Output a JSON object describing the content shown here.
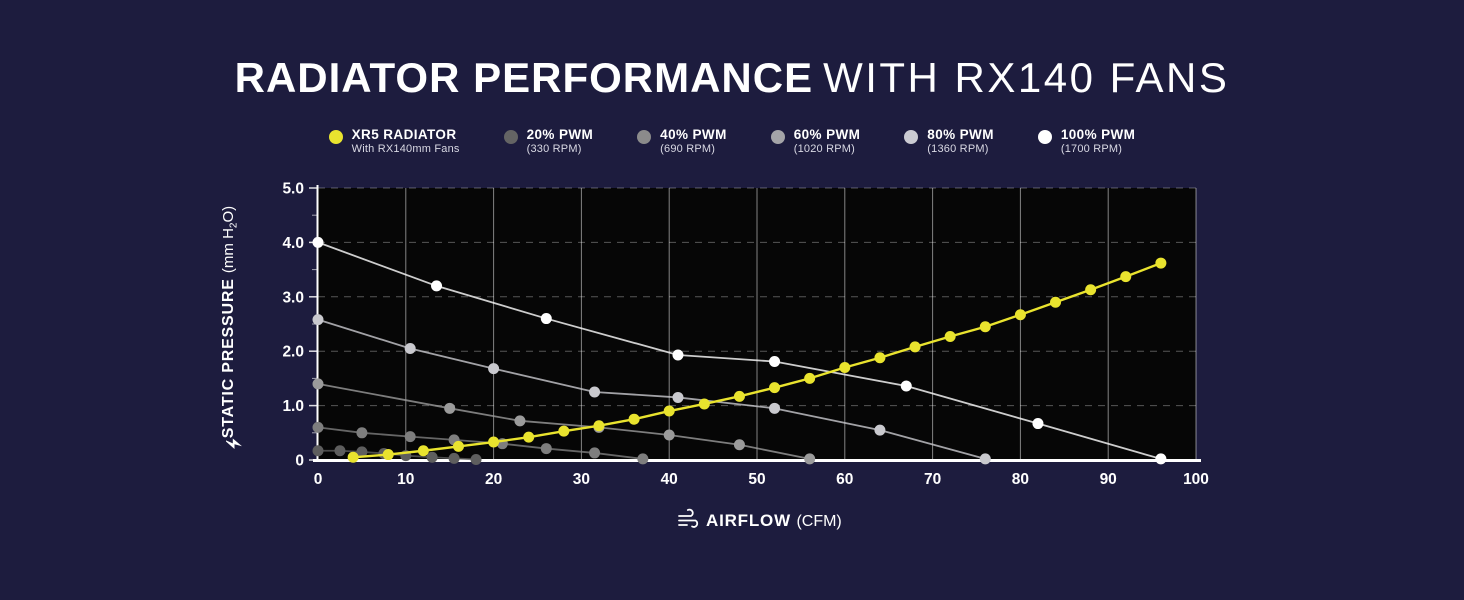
{
  "title": {
    "bold": "RADIATOR PERFORMANCE",
    "light": "WITH RX140 FANS"
  },
  "colors": {
    "background": "#1d1c3e",
    "plot_background": "#060606",
    "accent_yellow": "#e9e32e",
    "axis_white": "#ffffff"
  },
  "legend": [
    {
      "label": "XR5 RADIATOR",
      "sub": "With RX140mm Fans",
      "color": "#e9e42f"
    },
    {
      "label": "20% PWM",
      "sub": "(330 RPM)",
      "color": "#646464"
    },
    {
      "label": "40% PWM",
      "sub": "(690 RPM)",
      "color": "#8b8b8b"
    },
    {
      "label": "60% PWM",
      "sub": "(1020 RPM)",
      "color": "#a4a4a8"
    },
    {
      "label": "80% PWM",
      "sub": "(1360 RPM)",
      "color": "#cbcbd2"
    },
    {
      "label": "100% PWM",
      "sub": "(1700 RPM)",
      "color": "#ffffff"
    }
  ],
  "chart_data": {
    "type": "line",
    "title": "RADIATOR PERFORMANCE WITH RX140 FANS",
    "xlabel": "AIRFLOW (CFM)",
    "ylabel": "STATIC PRESSURE (mm H2O)",
    "xlabel_bold": "AIRFLOW",
    "xlabel_unit": "(CFM)",
    "ylabel_bold": "STATIC PRESSURE",
    "ylabel_unit_pre": "(mm H",
    "ylabel_unit_sub": "2",
    "ylabel_unit_post": "O)",
    "xlim": [
      0,
      100
    ],
    "ylim": [
      0,
      5
    ],
    "xticks": [
      0,
      10,
      20,
      30,
      40,
      50,
      60,
      70,
      80,
      90,
      100
    ],
    "yticks": [
      {
        "v": 0,
        "label": "0"
      },
      {
        "v": 1,
        "label": "1.0"
      },
      {
        "v": 2,
        "label": "2.0"
      },
      {
        "v": 3,
        "label": "3.0"
      },
      {
        "v": 4,
        "label": "4.0"
      },
      {
        "v": 5,
        "label": "5.0"
      }
    ],
    "yminor": [
      0.5,
      1.5,
      2.5,
      3.5,
      4.5
    ],
    "ygrid": [
      1,
      2,
      3,
      4,
      5
    ],
    "grid": "vertical solid, horizontal dashed",
    "legend_position": "top",
    "series": [
      {
        "name": "20% PWM",
        "rpm": "330 RPM",
        "color": "#5e5e5e",
        "points": [
          [
            0,
            0.17
          ],
          [
            2.5,
            0.17
          ],
          [
            5,
            0.15
          ],
          [
            7.5,
            0.12
          ],
          [
            10,
            0.08
          ],
          [
            13,
            0.05
          ],
          [
            15.5,
            0.03
          ],
          [
            18,
            0.01
          ]
        ]
      },
      {
        "name": "40% PWM",
        "rpm": "690 RPM",
        "color": "#7e7e7e",
        "points": [
          [
            0,
            0.6
          ],
          [
            5,
            0.5
          ],
          [
            10.5,
            0.43
          ],
          [
            15.5,
            0.37
          ],
          [
            21,
            0.3
          ],
          [
            26,
            0.21
          ],
          [
            31.5,
            0.13
          ],
          [
            37,
            0.02
          ]
        ]
      },
      {
        "name": "60% PWM",
        "rpm": "1020 RPM",
        "color": "#9b9b9b",
        "points": [
          [
            0,
            1.4
          ],
          [
            15,
            0.95
          ],
          [
            23,
            0.72
          ],
          [
            32,
            0.6
          ],
          [
            40,
            0.46
          ],
          [
            48,
            0.28
          ],
          [
            56,
            0.02
          ]
        ]
      },
      {
        "name": "80% PWM",
        "rpm": "1360 RPM",
        "color": "#c9c9ce",
        "points": [
          [
            0,
            2.58
          ],
          [
            10.5,
            2.05
          ],
          [
            20,
            1.68
          ],
          [
            31.5,
            1.25
          ],
          [
            41,
            1.15
          ],
          [
            52,
            0.95
          ],
          [
            64,
            0.55
          ],
          [
            76,
            0.02
          ]
        ]
      },
      {
        "name": "100% PWM",
        "rpm": "1700 RPM",
        "color": "#ffffff",
        "points": [
          [
            0,
            4.0
          ],
          [
            13.5,
            3.2
          ],
          [
            26,
            2.6
          ],
          [
            41,
            1.93
          ],
          [
            52,
            1.81
          ],
          [
            67,
            1.36
          ],
          [
            82,
            0.67
          ],
          [
            96,
            0.02
          ]
        ]
      },
      {
        "name": "XR5 RADIATOR",
        "rpm": "",
        "color": "#e9e32e",
        "points": [
          [
            4,
            0.05
          ],
          [
            8,
            0.1
          ],
          [
            12,
            0.17
          ],
          [
            16,
            0.25
          ],
          [
            20,
            0.33
          ],
          [
            24,
            0.42
          ],
          [
            28,
            0.53
          ],
          [
            32,
            0.63
          ],
          [
            36,
            0.75
          ],
          [
            40,
            0.9
          ],
          [
            44,
            1.03
          ],
          [
            48,
            1.17
          ],
          [
            52,
            1.33
          ],
          [
            56,
            1.5
          ],
          [
            60,
            1.7
          ],
          [
            64,
            1.88
          ],
          [
            68,
            2.08
          ],
          [
            72,
            2.27
          ],
          [
            76,
            2.45
          ],
          [
            80,
            2.67
          ],
          [
            84,
            2.9
          ],
          [
            88,
            3.13
          ],
          [
            92,
            3.37
          ],
          [
            96,
            3.62
          ]
        ]
      }
    ]
  }
}
